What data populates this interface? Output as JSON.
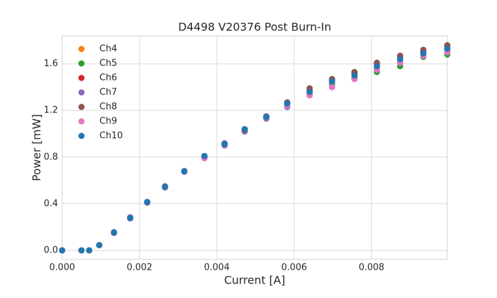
{
  "chart_data": {
    "type": "scatter",
    "title": "D4498 V20376 Post Burn-In",
    "x_label": "Current [A]",
    "y_label": "Power [mW]",
    "x": [
      0,
      0.0005,
      0.0007,
      0.00096,
      0.00134,
      0.00176,
      0.0022,
      0.00266,
      0.00316,
      0.00368,
      0.0042,
      0.00472,
      0.00528,
      0.00582,
      0.0064,
      0.00698,
      0.00756,
      0.00814,
      0.00874,
      0.00934,
      0.00996
    ],
    "series": [
      {
        "name": "Ch4",
        "color": "#ff7f0e",
        "values": [
          0,
          0,
          0,
          0.045,
          0.155,
          0.28,
          0.415,
          0.545,
          0.68,
          0.8,
          0.91,
          1.03,
          1.14,
          1.25,
          1.36,
          1.44,
          1.49,
          1.57,
          1.63,
          1.68,
          1.72
        ]
      },
      {
        "name": "Ch5",
        "color": "#2ca02c",
        "values": [
          0,
          0,
          0,
          0.045,
          0.15,
          0.275,
          0.41,
          0.54,
          0.675,
          0.795,
          0.905,
          1.02,
          1.13,
          1.24,
          1.34,
          1.42,
          1.48,
          1.53,
          1.58,
          1.66,
          1.68
        ]
      },
      {
        "name": "Ch6",
        "color": "#d62728",
        "values": [
          0,
          0,
          0,
          0.045,
          0.155,
          0.28,
          0.415,
          0.545,
          0.68,
          0.8,
          0.915,
          1.03,
          1.145,
          1.26,
          1.37,
          1.46,
          1.52,
          1.6,
          1.66,
          1.7,
          1.75
        ]
      },
      {
        "name": "Ch7",
        "color": "#9467bd",
        "values": [
          0,
          0,
          0,
          0.045,
          0.15,
          0.275,
          0.41,
          0.54,
          0.675,
          0.795,
          0.9,
          1.02,
          1.13,
          1.23,
          1.33,
          1.4,
          1.47,
          1.55,
          1.61,
          1.67,
          1.71
        ]
      },
      {
        "name": "Ch8",
        "color": "#8c564b",
        "values": [
          0,
          0,
          0,
          0.045,
          0.155,
          0.28,
          0.415,
          0.55,
          0.68,
          0.805,
          0.915,
          1.035,
          1.15,
          1.27,
          1.39,
          1.47,
          1.53,
          1.61,
          1.67,
          1.72,
          1.76
        ]
      },
      {
        "name": "Ch9",
        "color": "#e377c2",
        "values": [
          0,
          0,
          0,
          0.045,
          0.155,
          0.285,
          0.415,
          0.545,
          0.68,
          0.79,
          0.92,
          1.04,
          1.14,
          1.24,
          1.33,
          1.4,
          1.47,
          1.55,
          1.61,
          1.67,
          1.7
        ]
      },
      {
        "name": "Ch10",
        "color": "#1f77b4",
        "values": [
          0,
          0,
          0,
          0.045,
          0.155,
          0.28,
          0.415,
          0.545,
          0.68,
          0.81,
          0.915,
          1.04,
          1.145,
          1.26,
          1.36,
          1.45,
          1.5,
          1.58,
          1.64,
          1.69,
          1.73
        ]
      }
    ],
    "xlim": [
      0,
      0.00996
    ],
    "ylim": [
      -0.077,
      1.84
    ],
    "xticks": [
      {
        "value": 0,
        "label": "0.000"
      },
      {
        "value": 0.002,
        "label": "0.002"
      },
      {
        "value": 0.004,
        "label": "0.004"
      },
      {
        "value": 0.006,
        "label": "0.006"
      },
      {
        "value": 0.008,
        "label": "0.008"
      }
    ],
    "yticks": [
      {
        "value": 0,
        "label": "0.0"
      },
      0.4,
      0.8,
      1.2,
      1.6
    ],
    "grid": true,
    "legend": "upper-left"
  }
}
